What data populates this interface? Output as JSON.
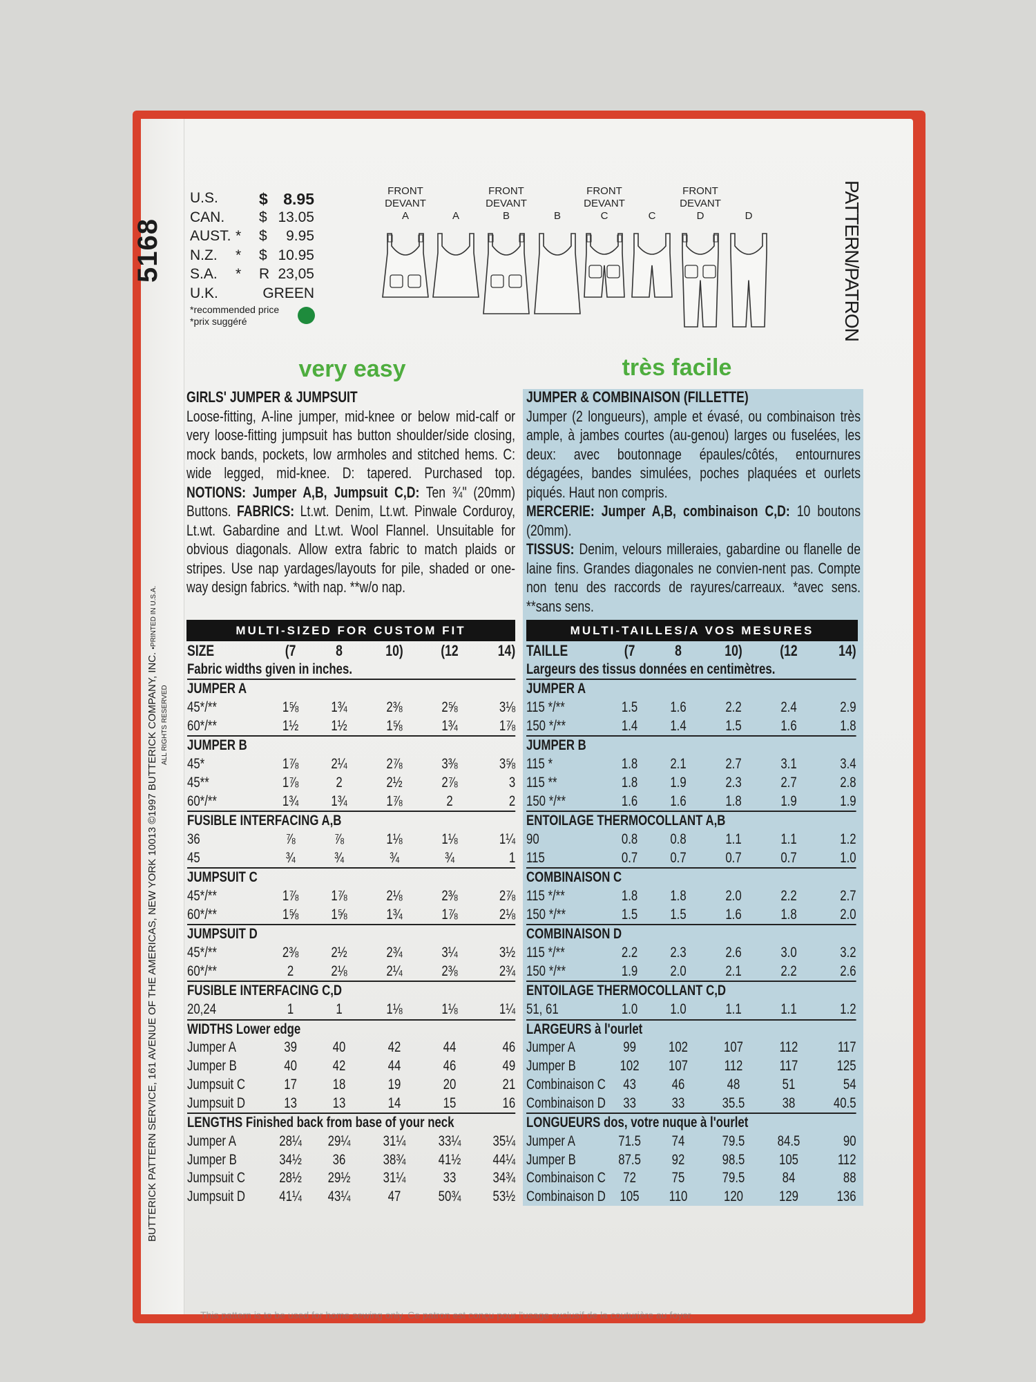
{
  "colors": {
    "envelope_red": "#d9412c",
    "level_green": "#4ead3e",
    "uk_dot": "#1e8b3c",
    "french_panel": "#bcd4de"
  },
  "pattern_number": "5168",
  "spine": {
    "text": "BUTTERICK PATTERN SERVICE, 161 AVENUE OF THE AMERICAS, NEW YORK 10013 ©1997 BUTTERICK COMPANY, INC.",
    "printed": "•PRINTED IN U.S.A.",
    "rights": "ALL RIGHTS RESERVED"
  },
  "prices": [
    {
      "country": "U.S.",
      "mark": "",
      "currency": "$",
      "value": "8.95"
    },
    {
      "country": "CAN.",
      "mark": "",
      "currency": "$",
      "value": "13.05"
    },
    {
      "country": "AUST.",
      "mark": "*",
      "currency": "$",
      "value": "9.95"
    },
    {
      "country": "N.Z.",
      "mark": "*",
      "currency": "$",
      "value": "10.95"
    },
    {
      "country": "S.A.",
      "mark": "*",
      "currency": "R",
      "value": "23,05"
    },
    {
      "country": "U.K.",
      "mark": "",
      "currency": "",
      "value": "GREEN"
    }
  ],
  "price_notes": [
    "*recommended price",
    "*prix suggéré"
  ],
  "views": [
    {
      "label": [
        "FRONT",
        "DEVANT",
        "A"
      ],
      "kind": "jumper-a-front"
    },
    {
      "label": [
        "A"
      ],
      "kind": "jumper-a-back"
    },
    {
      "label": [
        "FRONT",
        "DEVANT",
        "B"
      ],
      "kind": "jumper-b-front"
    },
    {
      "label": [
        "B"
      ],
      "kind": "jumper-b-back"
    },
    {
      "label": [
        "FRONT",
        "DEVANT",
        "C"
      ],
      "kind": "jumpsuit-c-front"
    },
    {
      "label": [
        "C"
      ],
      "kind": "jumpsuit-c-back"
    },
    {
      "label": [
        "FRONT",
        "DEVANT",
        "D"
      ],
      "kind": "jumpsuit-d-front"
    },
    {
      "label": [
        "D"
      ],
      "kind": "jumpsuit-d-back"
    }
  ],
  "pattern_patron": "PATTERN/PATRON",
  "english": {
    "level": "very easy",
    "title": "GIRLS' JUMPER & JUMPSUIT",
    "intro": "Loose-fitting, A-line jumper, mid-knee or below mid-calf or very loose-fitting jumpsuit has button shoulder/side closing, mock bands, pockets, low armholes and stitched hems. C: wide legged, mid-knee. D: tapered. Purchased top.",
    "notions_label": "NOTIONS: Jumper A,B, Jumpsuit C,D:",
    "notions_text": "Ten ¾\" (20mm) Buttons.",
    "fabrics_label": "FABRICS:",
    "fabrics_text": "Lt.wt. Denim, Lt.wt. Pinwale Corduroy, Lt.wt. Gabardine and Lt.wt. Wool Flannel. Unsuitable for obvious diagonals. Allow extra fabric to match plaids or stripes. Use nap yardages/layouts for pile, shaded or one-way design fabrics. *with nap. **w/o nap.",
    "bar": "MULTI-SIZED FOR CUSTOM FIT",
    "table": {
      "head": [
        "SIZE",
        "(7",
        "8",
        "10)",
        "(12",
        "14)"
      ],
      "note": "Fabric widths given in inches.",
      "sections": [
        {
          "title": "JUMPER A",
          "rows": [
            [
              "45*/**",
              "1⅝",
              "1¾",
              "2⅜",
              "2⅝",
              "3⅛"
            ],
            [
              "60*/**",
              "1½",
              "1½",
              "1⅝",
              "1¾",
              "1⅞"
            ]
          ]
        },
        {
          "title": "JUMPER B",
          "rows": [
            [
              "45*",
              "1⅞",
              "2¼",
              "2⅞",
              "3⅜",
              "3⅝"
            ],
            [
              "45**",
              "1⅞",
              "2",
              "2½",
              "2⅞",
              "3"
            ],
            [
              "60*/**",
              "1¾",
              "1¾",
              "1⅞",
              "2",
              "2"
            ]
          ]
        },
        {
          "title": "FUSIBLE INTERFACING A,B",
          "rows": [
            [
              "36",
              "⅞",
              "⅞",
              "1⅛",
              "1⅛",
              "1¼"
            ],
            [
              "45",
              "¾",
              "¾",
              "¾",
              "¾",
              "1"
            ]
          ]
        },
        {
          "title": "JUMPSUIT C",
          "rows": [
            [
              "45*/**",
              "1⅞",
              "1⅞",
              "2⅛",
              "2⅜",
              "2⅞"
            ],
            [
              "60*/**",
              "1⅝",
              "1⅝",
              "1¾",
              "1⅞",
              "2⅛"
            ]
          ]
        },
        {
          "title": "JUMPSUIT D",
          "rows": [
            [
              "45*/**",
              "2⅜",
              "2½",
              "2¾",
              "3¼",
              "3½"
            ],
            [
              "60*/**",
              "2",
              "2⅛",
              "2¼",
              "2⅜",
              "2¾"
            ]
          ]
        },
        {
          "title": "FUSIBLE INTERFACING C,D",
          "rows": [
            [
              "20,24",
              "1",
              "1",
              "1⅛",
              "1⅛",
              "1¼"
            ]
          ]
        },
        {
          "title": "WIDTHS Lower edge",
          "rows": [
            [
              "Jumper A",
              "39",
              "40",
              "42",
              "44",
              "46"
            ],
            [
              "Jumper B",
              "40",
              "42",
              "44",
              "46",
              "49"
            ],
            [
              "Jumpsuit C",
              "17",
              "18",
              "19",
              "20",
              "21"
            ],
            [
              "Jumpsuit D",
              "13",
              "13",
              "14",
              "15",
              "16"
            ]
          ]
        },
        {
          "title": "LENGTHS Finished back from base of your neck",
          "rows": [
            [
              "Jumper A",
              "28¼",
              "29¼",
              "31¼",
              "33¼",
              "35¼"
            ],
            [
              "Jumper B",
              "34½",
              "36",
              "38¾",
              "41½",
              "44¼"
            ],
            [
              "Jumpsuit C",
              "28½",
              "29½",
              "31¼",
              "33",
              "34¾"
            ],
            [
              "Jumpsuit D",
              "41¼",
              "43¼",
              "47",
              "50¾",
              "53½"
            ]
          ]
        }
      ]
    }
  },
  "french": {
    "level": "très facile",
    "title": "JUMPER & COMBINAISON (FILLETTE)",
    "intro": "Jumper (2 longueurs), ample et évasé, ou combinaison très ample, à jambes courtes (au-genou) larges ou fuselées, les deux: avec boutonnage épaules/côtés, entournures dégagées, bandes simulées, poches plaquées et ourlets piqués. Haut non compris.",
    "notions_label": "MERCERIE: Jumper A,B, combinaison C,D:",
    "notions_text": "10 boutons (20mm).",
    "fabrics_label": "TISSUS:",
    "fabrics_text": "Denim, velours milleraies, gabardine ou flanelle de laine fins. Grandes diagonales ne convien-nent pas. Compte non tenu des raccords de rayures/carreaux. *avec sens. **sans sens.",
    "bar": "MULTI-TAILLES/A VOS MESURES",
    "table": {
      "head": [
        "TAILLE",
        "(7",
        "8",
        "10)",
        "(12",
        "14)"
      ],
      "note": "Largeurs des tissus données en centimètres.",
      "sections": [
        {
          "title": "JUMPER A",
          "rows": [
            [
              "115 */**",
              "1.5",
              "1.6",
              "2.2",
              "2.4",
              "2.9"
            ],
            [
              "150 */**",
              "1.4",
              "1.4",
              "1.5",
              "1.6",
              "1.8"
            ]
          ]
        },
        {
          "title": "JUMPER B",
          "rows": [
            [
              "115 *",
              "1.8",
              "2.1",
              "2.7",
              "3.1",
              "3.4"
            ],
            [
              "115 **",
              "1.8",
              "1.9",
              "2.3",
              "2.7",
              "2.8"
            ],
            [
              "150 */**",
              "1.6",
              "1.6",
              "1.8",
              "1.9",
              "1.9"
            ]
          ]
        },
        {
          "title": "ENTOILAGE THERMOCOLLANT A,B",
          "rows": [
            [
              "90",
              "0.8",
              "0.8",
              "1.1",
              "1.1",
              "1.2"
            ],
            [
              "115",
              "0.7",
              "0.7",
              "0.7",
              "0.7",
              "1.0"
            ]
          ]
        },
        {
          "title": "COMBINAISON C",
          "rows": [
            [
              "115 */**",
              "1.8",
              "1.8",
              "2.0",
              "2.2",
              "2.7"
            ],
            [
              "150 */**",
              "1.5",
              "1.5",
              "1.6",
              "1.8",
              "2.0"
            ]
          ]
        },
        {
          "title": "COMBINAISON D",
          "rows": [
            [
              "115 */**",
              "2.2",
              "2.3",
              "2.6",
              "3.0",
              "3.2"
            ],
            [
              "150 */**",
              "1.9",
              "2.0",
              "2.1",
              "2.2",
              "2.6"
            ]
          ]
        },
        {
          "title": "ENTOILAGE THERMOCOLLANT C,D",
          "rows": [
            [
              "51, 61",
              "1.0",
              "1.0",
              "1.1",
              "1.1",
              "1.2"
            ]
          ]
        },
        {
          "title": "LARGEURS à l'ourlet",
          "rows": [
            [
              "Jumper A",
              "99",
              "102",
              "107",
              "112",
              "117"
            ],
            [
              "Jumper B",
              "102",
              "107",
              "112",
              "117",
              "125"
            ],
            [
              "Combinaison C",
              "43",
              "46",
              "48",
              "51",
              "54"
            ],
            [
              "Combinaison D",
              "33",
              "33",
              "35.5",
              "38",
              "40.5"
            ]
          ]
        },
        {
          "title": "LONGUEURS dos, votre nuque à l'ourlet",
          "rows": [
            [
              "Jumper A",
              "71.5",
              "74",
              "79.5",
              "84.5",
              "90"
            ],
            [
              "Jumper B",
              "87.5",
              "92",
              "98.5",
              "105",
              "112"
            ],
            [
              "Combinaison C",
              "72",
              "75",
              "79.5",
              "84",
              "88"
            ],
            [
              "Combinaison D",
              "105",
              "110",
              "120",
              "129",
              "136"
            ]
          ]
        }
      ]
    }
  },
  "footer": "This pattern is to be used for home sewing only. Ce patron est conçu pour l'usage exclusif de la couturière au foyer."
}
